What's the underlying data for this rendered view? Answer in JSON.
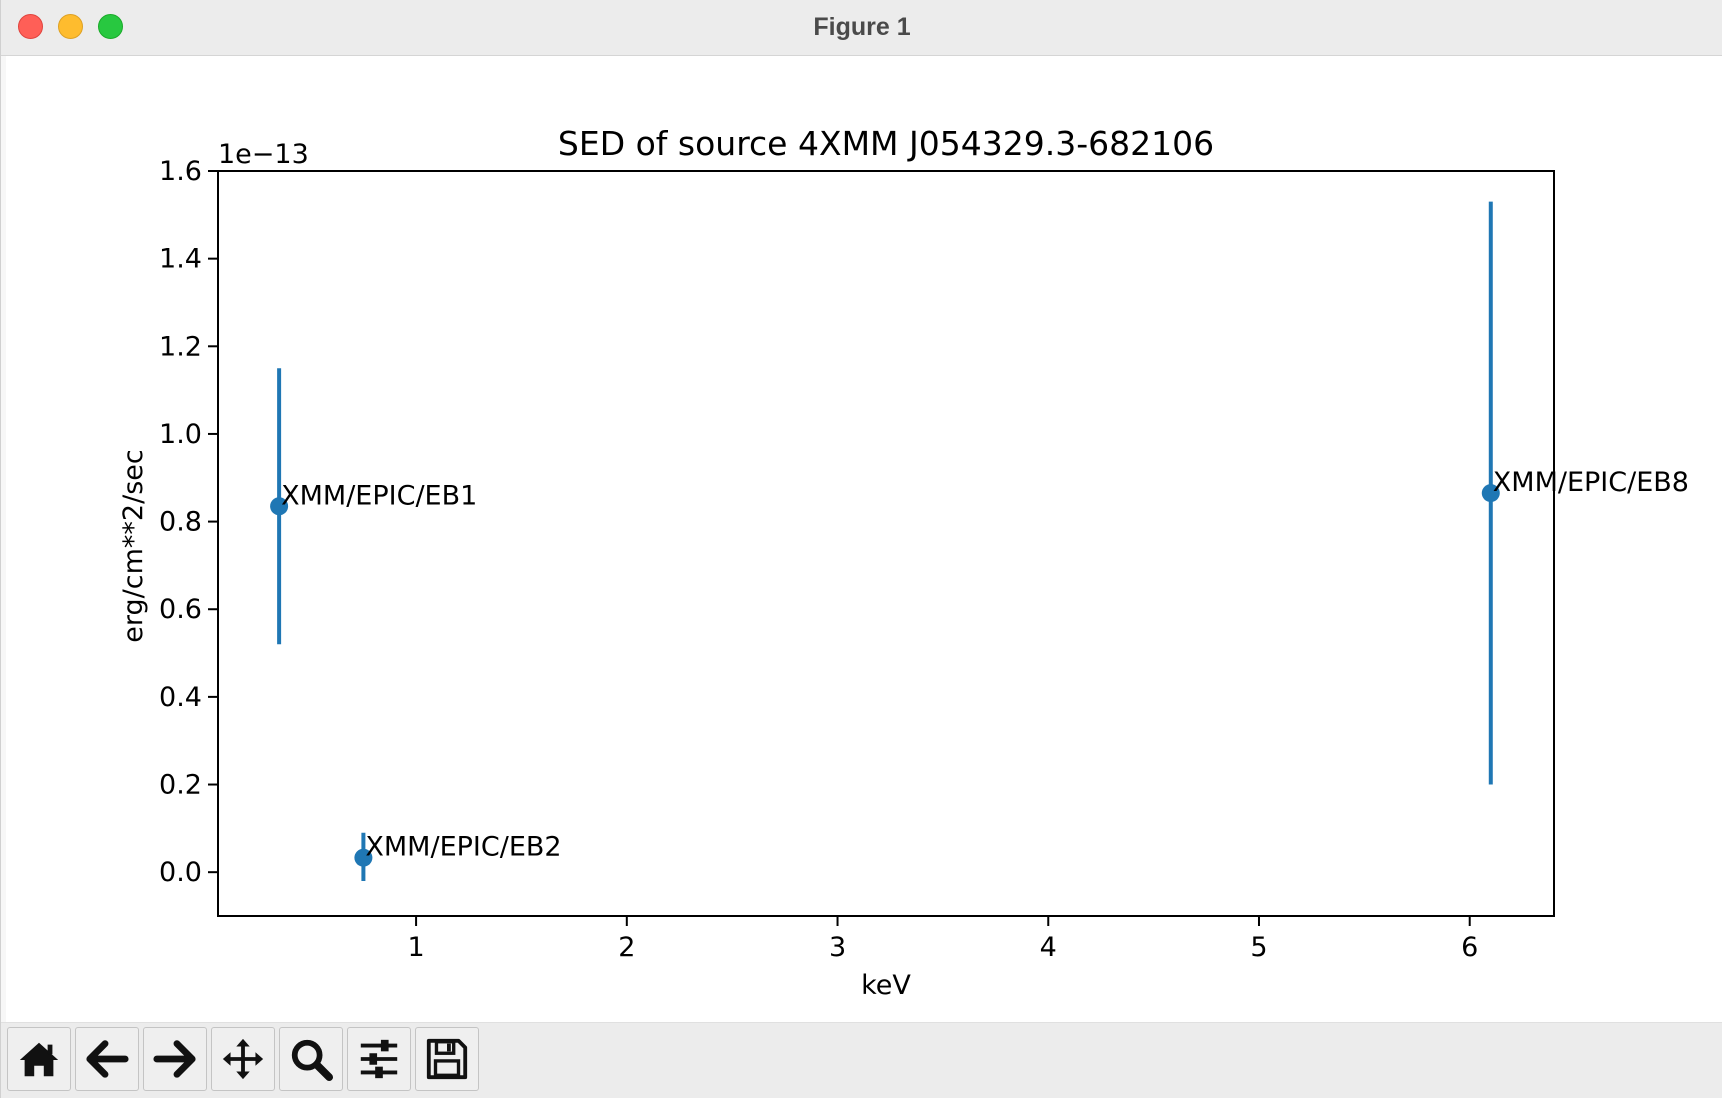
{
  "window": {
    "title": "Figure 1"
  },
  "toolbar": {
    "buttons": [
      {
        "name": "home",
        "icon": "home-icon"
      },
      {
        "name": "back",
        "icon": "arrow-left-icon"
      },
      {
        "name": "forward",
        "icon": "arrow-right-icon"
      },
      {
        "name": "pan",
        "icon": "move-icon"
      },
      {
        "name": "zoom",
        "icon": "magnifier-icon"
      },
      {
        "name": "configure-subplots",
        "icon": "sliders-icon"
      },
      {
        "name": "save",
        "icon": "floppy-disk-icon"
      }
    ]
  },
  "chart_data": {
    "type": "scatter",
    "title": "SED of source 4XMM J054329.3-682106",
    "xlabel": "keV",
    "ylabel": "erg/cm**2/sec",
    "y_offset_label": "1e−13",
    "y_scale_factor": 1e-13,
    "xlim": [
      0.06,
      6.4
    ],
    "ylim": [
      -0.1,
      1.6
    ],
    "xticks": [
      1,
      2,
      3,
      4,
      5,
      6
    ],
    "xtick_labels": [
      "1",
      "2",
      "3",
      "4",
      "5",
      "6"
    ],
    "yticks": [
      0.0,
      0.2,
      0.4,
      0.6,
      0.8,
      1.0,
      1.2,
      1.4,
      1.6
    ],
    "ytick_labels": [
      "0.0",
      "0.2",
      "0.4",
      "0.6",
      "0.8",
      "1.0",
      "1.2",
      "1.4",
      "1.6"
    ],
    "grid": false,
    "color": "#1f77b4",
    "points": [
      {
        "x": 0.35,
        "y": 0.835,
        "yerr_low": 0.52,
        "yerr_high": 1.15,
        "label": "XMM/EPIC/EB1"
      },
      {
        "x": 0.75,
        "y": 0.033,
        "yerr_low": -0.02,
        "yerr_high": 0.09,
        "label": "XMM/EPIC/EB2"
      },
      {
        "x": 6.1,
        "y": 0.865,
        "yerr_low": 0.2,
        "yerr_high": 1.53,
        "label": "XMM/EPIC/EB8"
      }
    ]
  }
}
